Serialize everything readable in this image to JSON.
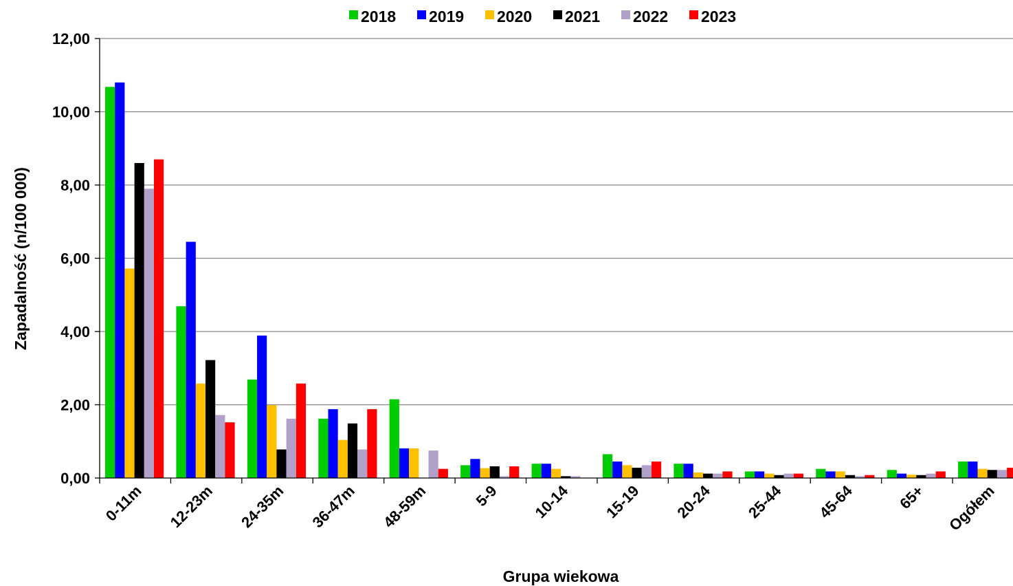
{
  "chart_data": {
    "type": "bar",
    "title": "",
    "xlabel": "Grupa wiekowa",
    "ylabel": "Zapadalność  (n/100 000)",
    "ylim": [
      0,
      12
    ],
    "yticks": [
      "0,00",
      "2,00",
      "4,00",
      "6,00",
      "8,00",
      "10,00",
      "12,00"
    ],
    "grid": true,
    "legend_position": "top",
    "categories": [
      "0-11m",
      "12-23m",
      "24-35m",
      "36-47m",
      "48-59m",
      "5-9",
      "10-14",
      "15-19",
      "20-24",
      "25-44",
      "45-64",
      "65+",
      "Ogółem"
    ],
    "series": [
      {
        "name": "2018",
        "color": "#00cc00",
        "values": [
          10.68,
          4.69,
          2.69,
          1.62,
          2.15,
          0.35,
          0.39,
          0.65,
          0.39,
          0.18,
          0.25,
          0.22,
          0.45
        ]
      },
      {
        "name": "2019",
        "color": "#0000ff",
        "values": [
          10.8,
          6.45,
          3.89,
          1.88,
          0.81,
          0.52,
          0.39,
          0.45,
          0.39,
          0.18,
          0.18,
          0.12,
          0.45
        ]
      },
      {
        "name": "2020",
        "color": "#ffc000",
        "values": [
          5.72,
          2.58,
          1.99,
          1.04,
          0.81,
          0.27,
          0.25,
          0.35,
          0.15,
          0.12,
          0.18,
          0.09,
          0.25
        ]
      },
      {
        "name": "2021",
        "color": "#000000",
        "values": [
          8.6,
          3.22,
          0.78,
          1.49,
          0.0,
          0.32,
          0.05,
          0.28,
          0.12,
          0.08,
          0.08,
          0.08,
          0.22
        ]
      },
      {
        "name": "2022",
        "color": "#b1a0c7",
        "values": [
          7.9,
          1.72,
          1.62,
          0.78,
          0.75,
          0.05,
          0.05,
          0.35,
          0.12,
          0.12,
          0.05,
          0.12,
          0.22
        ]
      },
      {
        "name": "2023",
        "color": "#ff0000",
        "values": [
          8.7,
          1.52,
          2.58,
          1.88,
          0.25,
          0.32,
          0.0,
          0.45,
          0.18,
          0.12,
          0.08,
          0.18,
          0.28
        ]
      }
    ]
  }
}
